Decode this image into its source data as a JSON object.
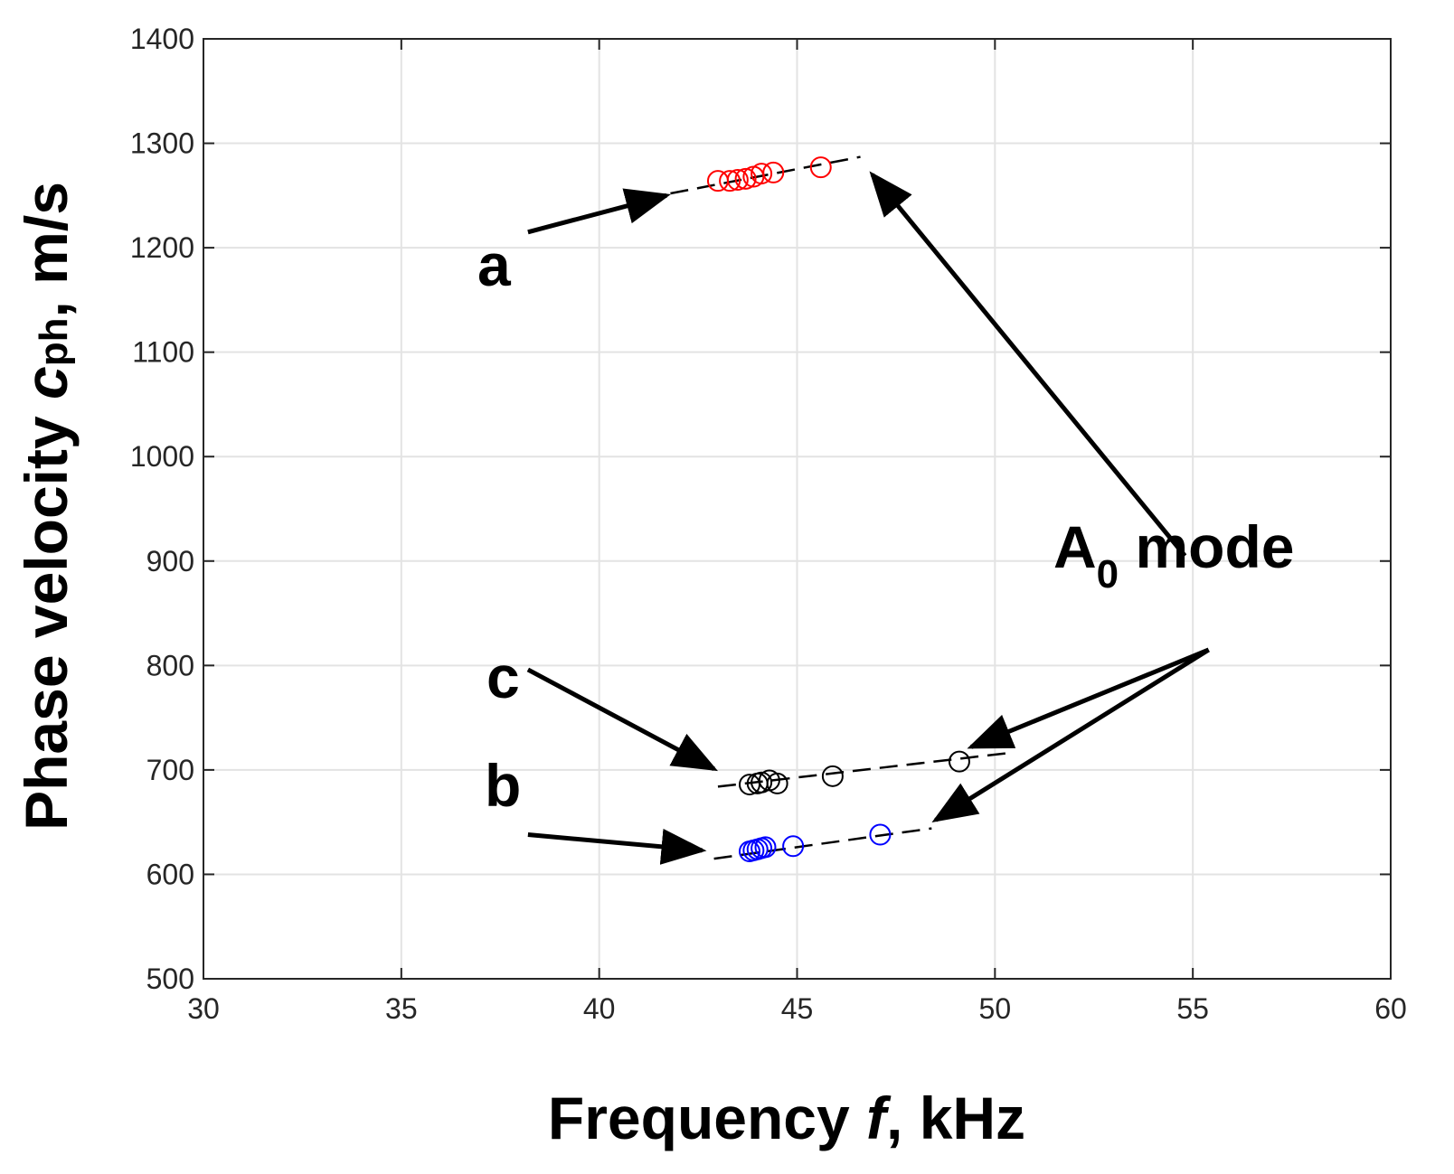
{
  "chart_data": {
    "type": "scatter",
    "title": "",
    "xlabel_prefix": "Frequency ",
    "xlabel_var": "f",
    "xlabel_suffix": ", kHz",
    "ylabel_prefix": "Phase velocity ",
    "ylabel_var": "c",
    "ylabel_sub": "ph",
    "ylabel_suffix": ", m/s",
    "xlim": [
      30,
      60
    ],
    "ylim": [
      500,
      1400
    ],
    "xticks": [
      30,
      35,
      40,
      45,
      50,
      55,
      60
    ],
    "yticks": [
      500,
      600,
      700,
      800,
      900,
      1000,
      1100,
      1200,
      1300,
      1400
    ],
    "grid": true,
    "series": [
      {
        "name": "a",
        "color": "#ff0000",
        "marker": "circle-open",
        "x": [
          43.0,
          43.3,
          43.5,
          43.7,
          43.9,
          44.1,
          44.4,
          45.6
        ],
        "y": [
          1264,
          1264,
          1265,
          1266,
          1268,
          1271,
          1272,
          1277
        ],
        "fit": {
          "x": [
            41.8,
            46.6
          ],
          "y": [
            1252,
            1287
          ]
        }
      },
      {
        "name": "c",
        "color": "#000000",
        "marker": "circle-open",
        "x": [
          43.8,
          44.0,
          44.1,
          44.3,
          44.5,
          45.9,
          49.1
        ],
        "y": [
          686,
          687,
          688,
          690,
          687,
          694,
          708
        ],
        "fit": {
          "x": [
            43.0,
            50.3
          ],
          "y": [
            684,
            716
          ]
        }
      },
      {
        "name": "b",
        "color": "#0000ff",
        "marker": "circle-open",
        "x": [
          43.8,
          43.9,
          44.0,
          44.1,
          44.2,
          44.9,
          47.1
        ],
        "y": [
          622,
          623,
          624,
          625,
          626,
          627,
          638
        ],
        "fit": {
          "x": [
            42.9,
            48.4
          ],
          "y": [
            615,
            644
          ]
        }
      }
    ],
    "annotations": [
      {
        "label": "a",
        "points_to": "a",
        "arrow_from": [
          38.2,
          1215
        ],
        "arrow_to": [
          41.7,
          1250
        ]
      },
      {
        "label": "c",
        "points_to": "c",
        "arrow_from": [
          38.2,
          796
        ],
        "arrow_to": [
          42.9,
          701
        ]
      },
      {
        "label": "b",
        "points_to": "b",
        "arrow_from": [
          38.2,
          638
        ],
        "arrow_to": [
          42.6,
          623
        ]
      },
      {
        "label": "A",
        "label_sub": "0",
        "label_suffix": " mode",
        "points_to": "all"
      }
    ],
    "mode_arrows": [
      {
        "from": [
          54.8,
          905
        ],
        "to": [
          46.9,
          1270
        ]
      },
      {
        "from": [
          55.4,
          815
        ],
        "to": [
          49.4,
          722
        ]
      },
      {
        "from": [
          55.4,
          815
        ],
        "to": [
          48.5,
          652
        ]
      }
    ]
  }
}
